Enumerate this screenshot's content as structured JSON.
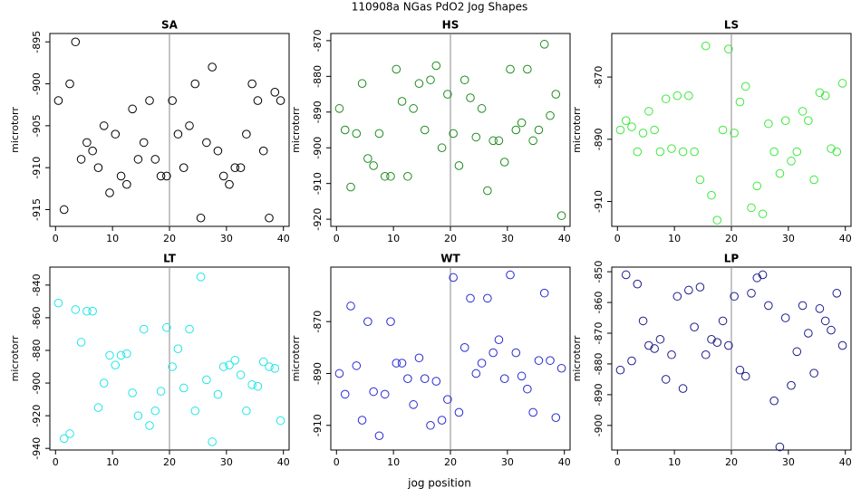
{
  "title": "110908a   NGas PdO2 Jog Shapes",
  "xlabel": "jog position",
  "chart_data": [
    {
      "type": "scatter",
      "title": "SA",
      "ylabel": "microtorr",
      "color": "#000000",
      "vline": 20,
      "xlim": [
        -1,
        41
      ],
      "xticks": [
        0,
        10,
        20,
        30,
        40
      ],
      "ylim": [
        -917,
        -894
      ],
      "yticks": [
        -895,
        -900,
        -905,
        -910,
        -915
      ],
      "x": [
        0.5,
        1.5,
        2.5,
        3.5,
        4.5,
        5.5,
        6.5,
        7.5,
        8.5,
        9.5,
        10.5,
        11.5,
        12.5,
        13.5,
        14.5,
        15.5,
        16.5,
        17.5,
        18.5,
        19.5,
        20.5,
        21.5,
        22.5,
        23.5,
        24.5,
        25.5,
        26.5,
        27.5,
        28.5,
        29.5,
        30.5,
        31.5,
        32.5,
        33.5,
        34.5,
        35.5,
        36.5,
        37.5,
        38.5,
        39.5
      ],
      "values": [
        -902,
        -915,
        -900,
        -895,
        -909,
        -907,
        -908,
        -910,
        -905,
        -913,
        -906,
        -911,
        -912,
        -903,
        -909,
        -907,
        -902,
        -909,
        -911,
        -911,
        -902,
        -906,
        -910,
        -905,
        -900,
        -916,
        -907,
        -898,
        -908,
        -911,
        -912,
        -910,
        -910,
        -906,
        -900,
        -902,
        -908,
        -916,
        -901,
        -902
      ]
    },
    {
      "type": "scatter",
      "title": "HS",
      "ylabel": "microtorr",
      "color": "#1e8c1e",
      "vline": 20,
      "xlim": [
        -1,
        41
      ],
      "xticks": [
        0,
        10,
        20,
        30,
        40
      ],
      "ylim": [
        -922,
        -868
      ],
      "yticks": [
        -870,
        -880,
        -890,
        -900,
        -910,
        -920
      ],
      "x": [
        0.5,
        1.5,
        2.5,
        3.5,
        4.5,
        5.5,
        6.5,
        7.5,
        8.5,
        9.5,
        10.5,
        11.5,
        12.5,
        13.5,
        14.5,
        15.5,
        16.5,
        17.5,
        18.5,
        19.5,
        20.5,
        21.5,
        22.5,
        23.5,
        24.5,
        25.5,
        26.5,
        27.5,
        28.5,
        29.5,
        30.5,
        31.5,
        32.5,
        33.5,
        34.5,
        35.5,
        36.5,
        37.5,
        38.5,
        39.5
      ],
      "values": [
        -889,
        -895,
        -911,
        -896,
        -882,
        -903,
        -905,
        -896,
        -908,
        -908,
        -878,
        -887,
        -908,
        -889,
        -882,
        -895,
        -881,
        -877,
        -900,
        -885,
        -896,
        -905,
        -881,
        -886,
        -897,
        -889,
        -912,
        -898,
        -898,
        -904,
        -878,
        -895,
        -893,
        -878,
        -898,
        -895,
        -871,
        -891,
        -885,
        -919
      ]
    },
    {
      "type": "scatter",
      "title": "LS",
      "ylabel": "microtorr",
      "color": "#3ee83e",
      "vline": 20,
      "xlim": [
        -1,
        41
      ],
      "xticks": [
        0,
        10,
        20,
        30,
        40
      ],
      "ylim": [
        -918,
        -856
      ],
      "yticks": [
        -870,
        -890,
        -910
      ],
      "x": [
        0.5,
        1.5,
        2.5,
        3.5,
        4.5,
        5.5,
        6.5,
        7.5,
        8.5,
        9.5,
        10.5,
        11.5,
        12.5,
        13.5,
        14.5,
        15.5,
        16.5,
        17.5,
        18.5,
        19.5,
        20.5,
        21.5,
        22.5,
        23.5,
        24.5,
        25.5,
        26.5,
        27.5,
        28.5,
        29.5,
        30.5,
        31.5,
        32.5,
        33.5,
        34.5,
        35.5,
        36.5,
        37.5,
        38.5,
        39.5
      ],
      "values": [
        -887,
        -884,
        -886,
        -894,
        -888,
        -881,
        -887,
        -894,
        -877,
        -893,
        -876,
        -894,
        -876,
        -894,
        -903,
        -860,
        -908,
        -916,
        -887,
        -861,
        -888,
        -878,
        -873,
        -912,
        -905,
        -914,
        -885,
        -894,
        -901,
        -884,
        -897,
        -894,
        -881,
        -884,
        -903,
        -875,
        -876,
        -893,
        -894,
        -872
      ]
    },
    {
      "type": "scatter",
      "title": "LT",
      "ylabel": "microtorr",
      "color": "#22e6e6",
      "vline": 20,
      "xlim": [
        -1,
        41
      ],
      "xticks": [
        0,
        10,
        20,
        30,
        40
      ],
      "ylim": [
        -941,
        -829
      ],
      "yticks": [
        -840,
        -860,
        -880,
        -900,
        -920,
        -940
      ],
      "x": [
        0.5,
        1.5,
        2.5,
        3.5,
        4.5,
        5.5,
        6.5,
        7.5,
        8.5,
        9.5,
        10.5,
        11.5,
        12.5,
        13.5,
        14.5,
        15.5,
        16.5,
        17.5,
        18.5,
        19.5,
        20.5,
        21.5,
        22.5,
        23.5,
        24.5,
        25.5,
        26.5,
        27.5,
        28.5,
        29.5,
        30.5,
        31.5,
        32.5,
        33.5,
        34.5,
        35.5,
        36.5,
        37.5,
        38.5,
        39.5
      ],
      "values": [
        -851,
        -934,
        -931,
        -855,
        -875,
        -856,
        -856,
        -915,
        -900,
        -883,
        -889,
        -883,
        -882,
        -906,
        -920,
        -867,
        -926,
        -917,
        -905,
        -866,
        -890,
        -879,
        -903,
        -867,
        -917,
        -835,
        -898,
        -936,
        -907,
        -890,
        -889,
        -886,
        -895,
        -917,
        -901,
        -902,
        -887,
        -890,
        -891,
        -923
      ]
    },
    {
      "type": "scatter",
      "title": "WT",
      "ylabel": "microtorr",
      "color": "#2a2ad2",
      "vline": 20,
      "xlim": [
        -1,
        41
      ],
      "xticks": [
        0,
        10,
        20,
        30,
        40
      ],
      "ylim": [
        -919.5,
        -849
      ],
      "yticks": [
        -870,
        -890,
        -910
      ],
      "x": [
        0.5,
        1.5,
        2.5,
        3.5,
        4.5,
        5.5,
        6.5,
        7.5,
        8.5,
        9.5,
        10.5,
        11.5,
        12.5,
        13.5,
        14.5,
        15.5,
        16.5,
        17.5,
        18.5,
        19.5,
        20.5,
        21.5,
        22.5,
        23.5,
        24.5,
        25.5,
        26.5,
        27.5,
        28.5,
        29.5,
        30.5,
        31.5,
        32.5,
        33.5,
        34.5,
        35.5,
        36.5,
        37.5,
        38.5,
        39.5
      ],
      "values": [
        -890,
        -898,
        -864,
        -887,
        -908,
        -870,
        -897,
        -914,
        -898,
        -870,
        -886,
        -886,
        -892,
        -902,
        -884,
        -892,
        -910,
        -893,
        -908,
        -900,
        -853,
        -905,
        -880,
        -861,
        -890,
        -886,
        -861,
        -882,
        -877,
        -892,
        -852,
        -882,
        -891,
        -896,
        -905,
        -885,
        -859,
        -885,
        -907,
        -888
      ]
    },
    {
      "type": "scatter",
      "title": "LP",
      "ylabel": "microtorr",
      "color": "#1c1c8c",
      "vline": 20,
      "xlim": [
        -1,
        41
      ],
      "xticks": [
        0,
        10,
        20,
        30,
        40
      ],
      "ylim": [
        -908,
        -848.5
      ],
      "yticks": [
        -850,
        -860,
        -870,
        -880,
        -890,
        -900
      ],
      "x": [
        0.5,
        1.5,
        2.5,
        3.5,
        4.5,
        5.5,
        6.5,
        7.5,
        8.5,
        9.5,
        10.5,
        11.5,
        12.5,
        13.5,
        14.5,
        15.5,
        16.5,
        17.5,
        18.5,
        19.5,
        20.5,
        21.5,
        22.5,
        23.5,
        24.5,
        25.5,
        26.5,
        27.5,
        28.5,
        29.5,
        30.5,
        31.5,
        32.5,
        33.5,
        34.5,
        35.5,
        36.5,
        37.5,
        38.5,
        39.5
      ],
      "values": [
        -882,
        -851,
        -879,
        -854,
        -866,
        -874,
        -875,
        -872,
        -885,
        -877,
        -858,
        -888,
        -856,
        -868,
        -855,
        -877,
        -872,
        -873,
        -866,
        -874,
        -858,
        -882,
        -884,
        -857,
        -852,
        -851,
        -861,
        -892,
        -907,
        -865,
        -887,
        -876,
        -861,
        -870,
        -883,
        -862,
        -866,
        -869,
        -857,
        -874
      ]
    }
  ]
}
